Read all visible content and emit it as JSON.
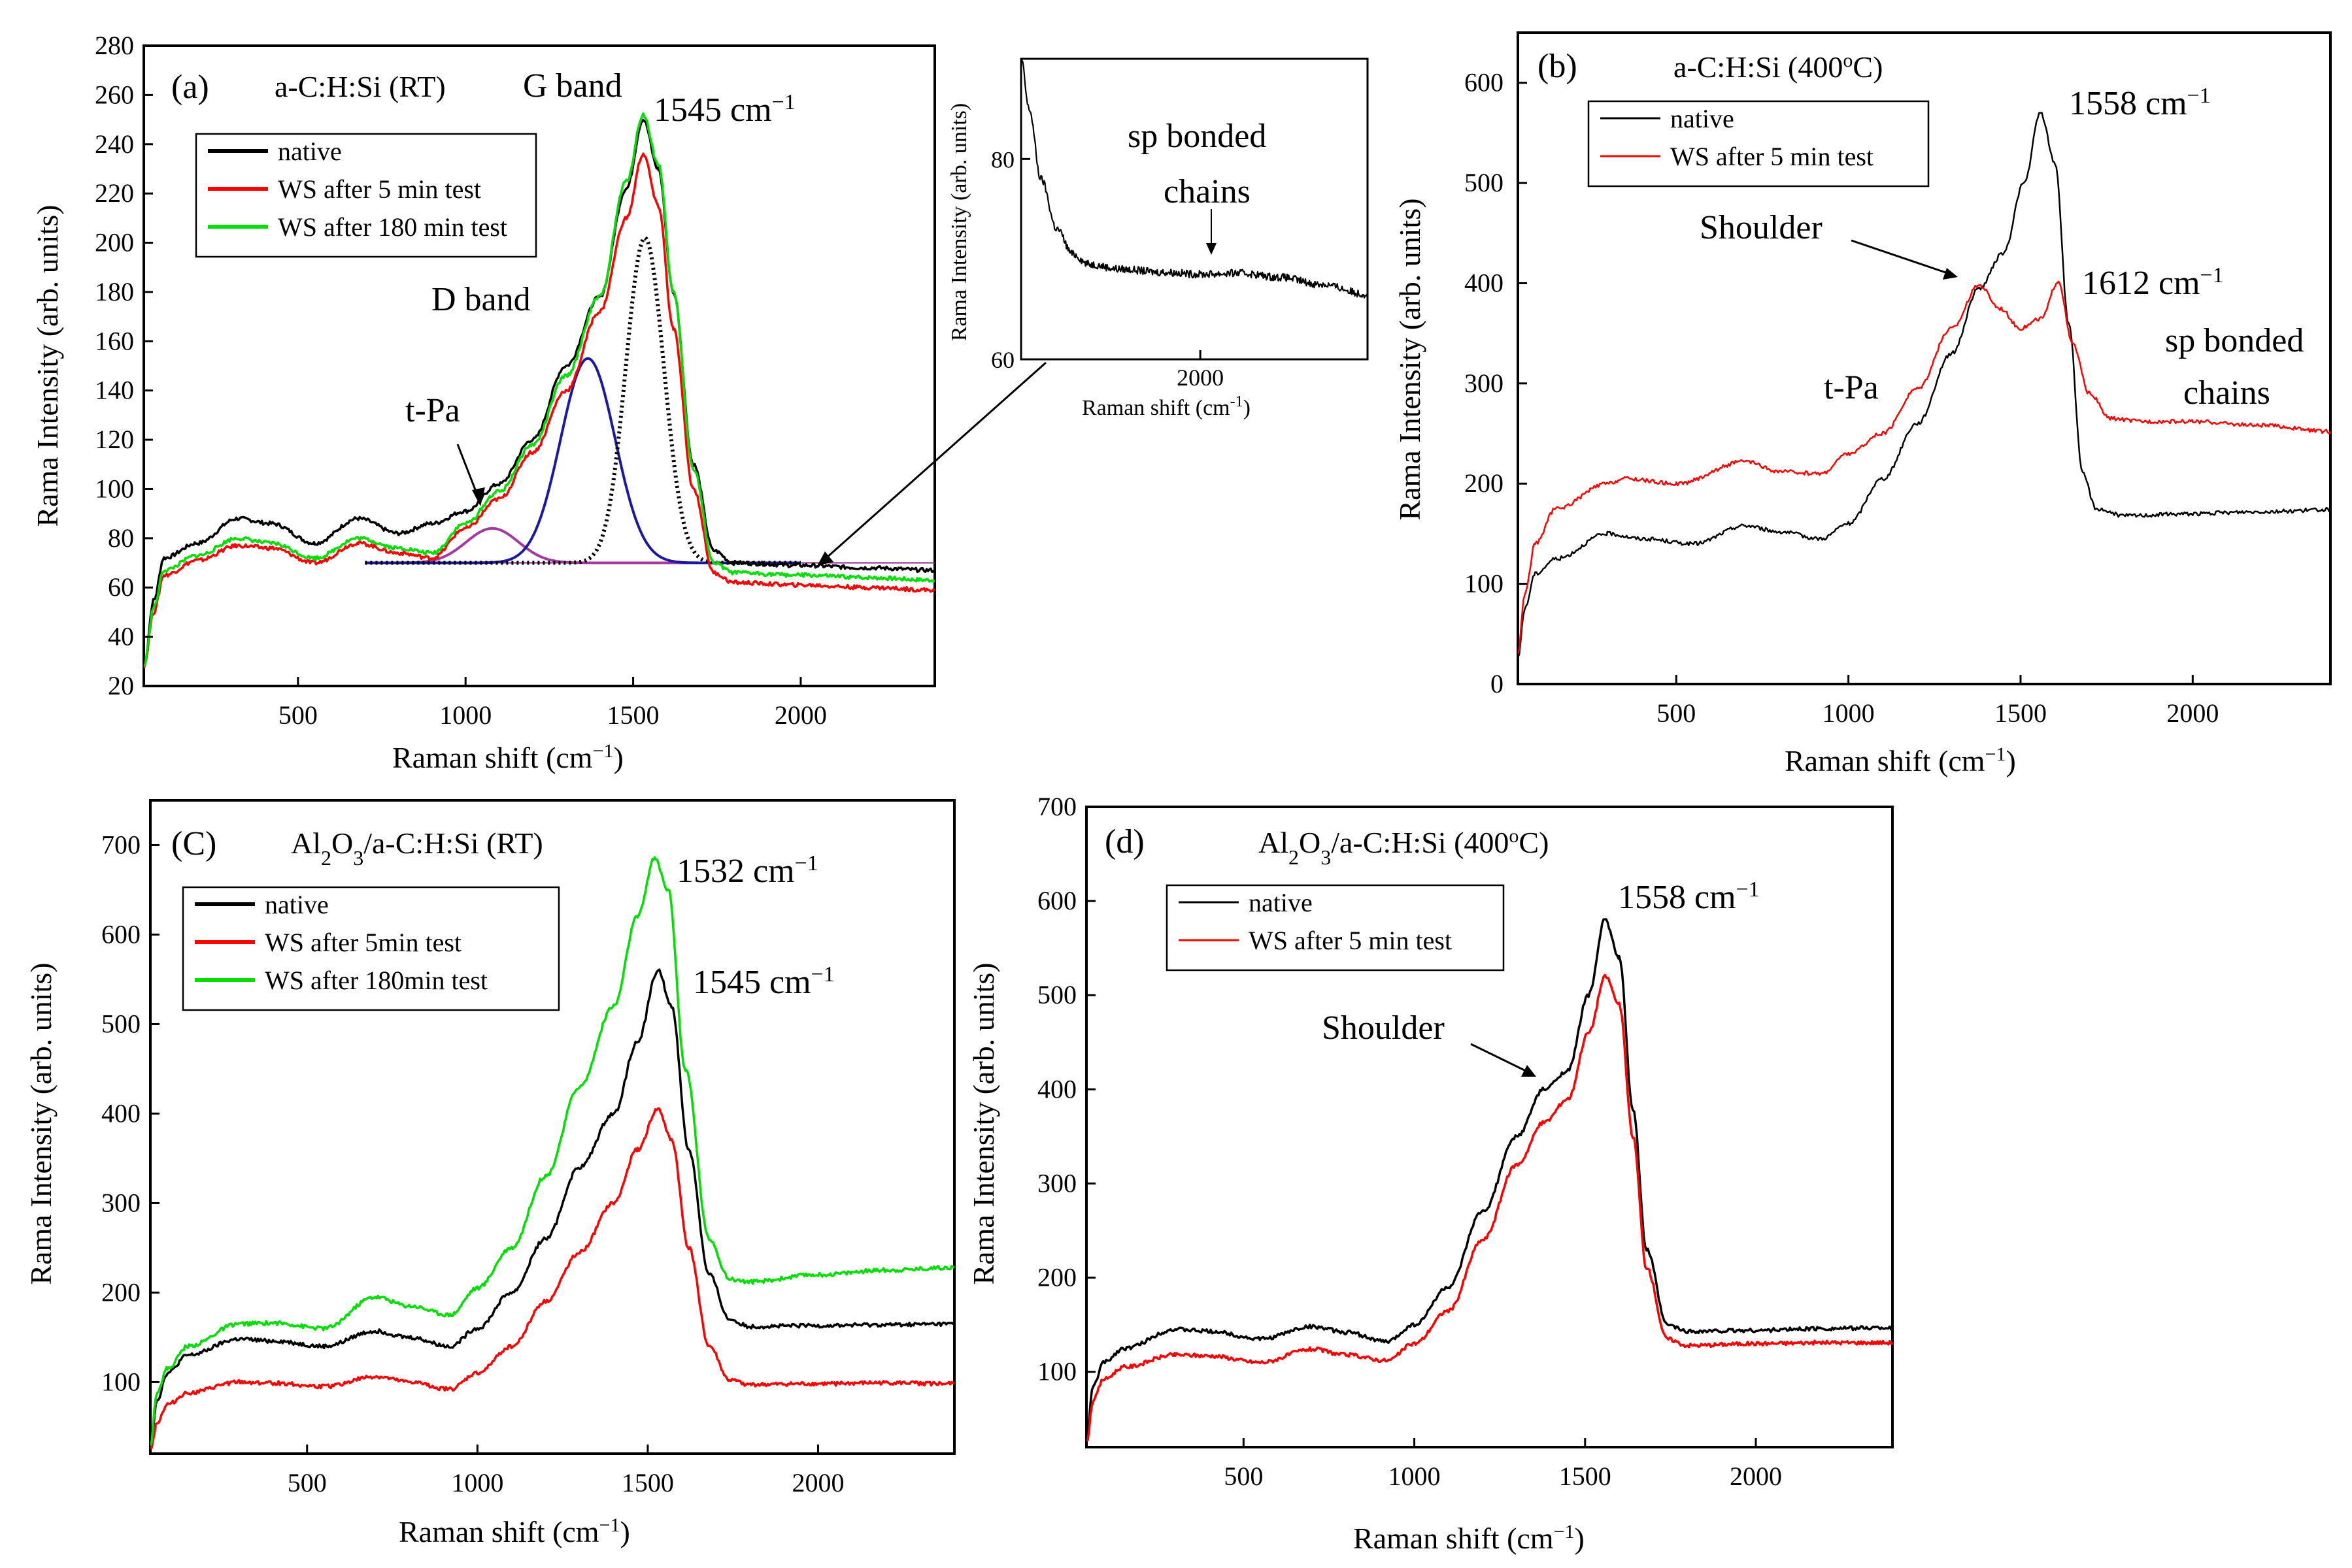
{
  "chart_data": [
    {
      "panel": "a",
      "type": "line",
      "panel_label": "(a)",
      "title": "a-C:H:Si (RT)",
      "xlabel": "Raman shift (cm",
      "xlabel_exp": "−1",
      "xlabel_end": ")",
      "ylabel": "Rama Intensity (arb. units)",
      "xlim": [
        40,
        2400
      ],
      "ylim": [
        20,
        280
      ],
      "xticks": [
        500,
        1000,
        1500,
        2000
      ],
      "yticks": [
        20,
        40,
        60,
        80,
        100,
        120,
        140,
        160,
        180,
        200,
        220,
        240,
        260,
        280
      ],
      "legend": [
        "native",
        "WS after 5 min test",
        "WS after 180 min test"
      ],
      "series": [
        {
          "name": "native",
          "color": "#000000",
          "x": [
            40,
            70,
            100,
            200,
            320,
            420,
            550,
            680,
            800,
            900,
            1000,
            1100,
            1200,
            1300,
            1400,
            1480,
            1530,
            1575,
            1620,
            1680,
            1740,
            1800,
            2000,
            2200,
            2400
          ],
          "y": [
            28,
            55,
            72,
            78,
            88,
            86,
            78,
            88,
            82,
            86,
            91,
            102,
            120,
            150,
            178,
            222,
            250,
            230,
            180,
            110,
            75,
            70,
            69,
            68,
            67
          ]
        },
        {
          "name": "WS after 5 min test",
          "color": "#ff0000",
          "x": [
            40,
            70,
            100,
            200,
            320,
            420,
            550,
            680,
            800,
            900,
            1000,
            1100,
            1200,
            1300,
            1400,
            1480,
            1530,
            1575,
            1620,
            1680,
            1740,
            1800,
            2000,
            2200,
            2400
          ],
          "y": [
            28,
            50,
            65,
            71,
            77,
            76,
            70,
            78,
            74,
            72,
            84,
            96,
            115,
            140,
            172,
            210,
            236,
            215,
            165,
            100,
            66,
            62,
            61,
            60,
            59
          ]
        },
        {
          "name": "WS after 180 min test",
          "color": "#00e000",
          "x": [
            40,
            70,
            100,
            200,
            320,
            420,
            550,
            680,
            800,
            900,
            1000,
            1100,
            1200,
            1300,
            1400,
            1480,
            1530,
            1575,
            1620,
            1680,
            1740,
            1800,
            2000,
            2200,
            2400
          ],
          "y": [
            28,
            52,
            67,
            73,
            80,
            78,
            72,
            80,
            76,
            74,
            86,
            99,
            118,
            146,
            178,
            225,
            252,
            232,
            180,
            108,
            70,
            66,
            65,
            64,
            63
          ]
        }
      ],
      "fits": {
        "baseline": 70,
        "t_Pa": {
          "center": 1080,
          "width": 110,
          "amplitude": 14,
          "color": "#a43aa0"
        },
        "D": {
          "center": 1365,
          "width": 115,
          "amplitude": 83,
          "color": "#1a1aa0"
        },
        "G": {
          "center": 1535,
          "width": 80,
          "amplitude": 132,
          "color": "#000000"
        }
      },
      "annotations": {
        "g_band": "G band",
        "g_peak": "1545 cm",
        "g_peak_exp": "−1",
        "d_band": "D band",
        "t_pa": "t-Pa"
      }
    },
    {
      "panel": "a-inset",
      "type": "line",
      "ylabel": "Rama Intensity (arb. units)",
      "xlabel": "Raman shift (cm",
      "xlabel_exp": "-1",
      "xlabel_end": ")",
      "xlim": [
        1550,
        2420
      ],
      "ylim": [
        60,
        90
      ],
      "xticks": [
        2000
      ],
      "yticks": [
        60,
        80
      ],
      "annotation": "sp bonded",
      "annotation2": "chains",
      "series": [
        {
          "name": "native",
          "color": "#000000",
          "x": [
            1550,
            1570,
            1600,
            1640,
            1680,
            1720,
            1800,
            1900,
            2000,
            2100,
            2200,
            2300,
            2420
          ],
          "y": [
            90,
            85,
            78,
            73,
            70.5,
            69.5,
            69,
            68.7,
            68.5,
            68.6,
            68.2,
            67.5,
            66.5
          ]
        }
      ]
    },
    {
      "panel": "b",
      "type": "line",
      "panel_label": "(b)",
      "title": "a-C:H:Si (400",
      "title_exp": "o",
      "title_end": "C)",
      "xlabel": "Raman shift (cm",
      "xlabel_exp": "−1",
      "xlabel_end": ")",
      "ylabel": "Rama Intensity (arb. units)",
      "xlim": [
        40,
        2400
      ],
      "ylim": [
        0,
        650
      ],
      "xticks": [
        500,
        1000,
        1500,
        2000
      ],
      "yticks": [
        0,
        100,
        200,
        300,
        400,
        500,
        600
      ],
      "legend": [
        "native",
        "WS after 5 min test"
      ],
      "series": [
        {
          "name": "native",
          "color": "#000000",
          "x": [
            40,
            60,
            90,
            150,
            300,
            400,
            550,
            700,
            800,
            920,
            1000,
            1100,
            1200,
            1300,
            1380,
            1450,
            1510,
            1558,
            1600,
            1640,
            1680,
            1720,
            1800,
            2000,
            2200,
            2400
          ],
          "y": [
            25,
            75,
            110,
            125,
            150,
            145,
            140,
            158,
            152,
            145,
            160,
            205,
            260,
            330,
            395,
            430,
            500,
            570,
            520,
            360,
            210,
            175,
            168,
            170,
            172,
            174
          ]
        },
        {
          "name": "WS after 5 min test",
          "color": "#ff0000",
          "x": [
            40,
            60,
            90,
            150,
            300,
            350,
            500,
            700,
            800,
            920,
            1000,
            1100,
            1200,
            1300,
            1380,
            1440,
            1500,
            1560,
            1610,
            1650,
            1700,
            1760,
            1850,
            2000,
            2200,
            2400
          ],
          "y": [
            30,
            90,
            140,
            175,
            200,
            205,
            200,
            222,
            212,
            210,
            230,
            250,
            295,
            355,
            398,
            375,
            355,
            365,
            402,
            340,
            290,
            265,
            262,
            262,
            258,
            252
          ]
        }
      ],
      "annotations": {
        "peak1": "1558 cm",
        "peak1_exp": "−1",
        "shoulder": "Shoulder",
        "peak2": "1612 cm",
        "peak2_exp": "−1",
        "sp": "sp bonded",
        "sp2": "chains",
        "t_pa": "t-Pa"
      }
    },
    {
      "panel": "c",
      "type": "line",
      "panel_label": "(C)",
      "title_pre": "Al",
      "title_sub1": "2",
      "title_mid": "O",
      "title_sub2": "3",
      "title_end": "/a-C:H:Si (RT)",
      "xlabel": "Raman shift (cm",
      "xlabel_exp": "−1",
      "xlabel_end": ")",
      "ylabel": "Rama Intensity (arb. units)",
      "xlim": [
        40,
        2400
      ],
      "ylim": [
        20,
        750
      ],
      "xticks": [
        500,
        1000,
        1500,
        2000
      ],
      "yticks": [
        100,
        200,
        300,
        400,
        500,
        600,
        700
      ],
      "legend": [
        "native",
        "WS after 5min test",
        "WS after 180min test"
      ],
      "series": [
        {
          "name": "native",
          "color": "#000000",
          "x": [
            40,
            60,
            90,
            150,
            300,
            400,
            550,
            700,
            800,
            920,
            1000,
            1100,
            1200,
            1300,
            1400,
            1470,
            1530,
            1570,
            1620,
            1680,
            1740,
            1800,
            2000,
            2200,
            2400
          ],
          "y": [
            30,
            80,
            110,
            130,
            148,
            146,
            140,
            157,
            150,
            140,
            160,
            200,
            260,
            340,
            400,
            480,
            560,
            520,
            360,
            220,
            170,
            162,
            163,
            164,
            165
          ]
        },
        {
          "name": "WS after 5min test",
          "color": "#ff0000",
          "x": [
            40,
            60,
            90,
            150,
            300,
            400,
            550,
            700,
            800,
            920,
            1000,
            1100,
            1200,
            1300,
            1400,
            1470,
            1530,
            1570,
            1620,
            1680,
            1740,
            1800,
            2000,
            2200,
            2400
          ],
          "y": [
            25,
            55,
            75,
            88,
            100,
            99,
            95,
            106,
            100,
            92,
            110,
            140,
            190,
            245,
            300,
            360,
            405,
            370,
            250,
            140,
            102,
            97,
            98,
            99,
            98
          ]
        },
        {
          "name": "WS after 180min test",
          "color": "#00e000",
          "x": [
            40,
            60,
            90,
            150,
            300,
            400,
            550,
            700,
            800,
            920,
            1000,
            1100,
            1200,
            1300,
            1400,
            1470,
            1520,
            1560,
            1610,
            1680,
            1740,
            1800,
            2000,
            2200,
            2400
          ],
          "y": [
            30,
            90,
            115,
            140,
            165,
            166,
            160,
            195,
            185,
            175,
            205,
            250,
            330,
            430,
            520,
            620,
            685,
            650,
            450,
            260,
            215,
            212,
            220,
            225,
            228
          ]
        }
      ],
      "annotations": {
        "peak1": "1532 cm",
        "peak1_exp": "−1",
        "peak2": "1545 cm",
        "peak2_exp": "−1"
      }
    },
    {
      "panel": "d",
      "type": "line",
      "panel_label": "(d)",
      "title_pre": "Al",
      "title_sub1": "2",
      "title_mid": "O",
      "title_sub2": "3",
      "title_end": "/a-C:H:Si  (400",
      "title_exp": "o",
      "title_end2": "C)",
      "xlabel": "Raman shift (cm",
      "xlabel_exp": "−1",
      "xlabel_end": ")",
      "ylabel": "Rama Intensity (arb. units)",
      "xlim": [
        40,
        2400
      ],
      "ylim": [
        20,
        700
      ],
      "xticks": [
        500,
        1000,
        1500,
        2000
      ],
      "yticks": [
        100,
        200,
        300,
        400,
        500,
        600,
        700
      ],
      "legend": [
        "native",
        "WS after 5 min test"
      ],
      "series": [
        {
          "name": "native",
          "color": "#000000",
          "x": [
            40,
            60,
            90,
            150,
            300,
            400,
            550,
            700,
            800,
            920,
            1000,
            1100,
            1200,
            1300,
            1380,
            1450,
            1510,
            1558,
            1600,
            1640,
            1680,
            1740,
            1800,
            2000,
            2200,
            2400
          ],
          "y": [
            30,
            85,
            110,
            125,
            145,
            143,
            135,
            148,
            142,
            132,
            150,
            190,
            270,
            350,
            400,
            420,
            500,
            580,
            540,
            380,
            230,
            150,
            143,
            144,
            146,
            147
          ]
        },
        {
          "name": "WS after 5 min test",
          "color": "#ff0000",
          "x": [
            40,
            60,
            90,
            150,
            300,
            400,
            550,
            700,
            800,
            920,
            1000,
            1100,
            1200,
            1300,
            1380,
            1450,
            1510,
            1560,
            1600,
            1640,
            1680,
            1740,
            1800,
            2000,
            2200,
            2400
          ],
          "y": [
            25,
            70,
            92,
            105,
            118,
            117,
            110,
            124,
            118,
            112,
            130,
            165,
            240,
            320,
            365,
            390,
            460,
            520,
            490,
            350,
            210,
            135,
            128,
            130,
            131,
            131
          ]
        }
      ],
      "annotations": {
        "peak1": "1558 cm",
        "peak1_exp": "−1",
        "shoulder": "Shoulder"
      }
    }
  ]
}
